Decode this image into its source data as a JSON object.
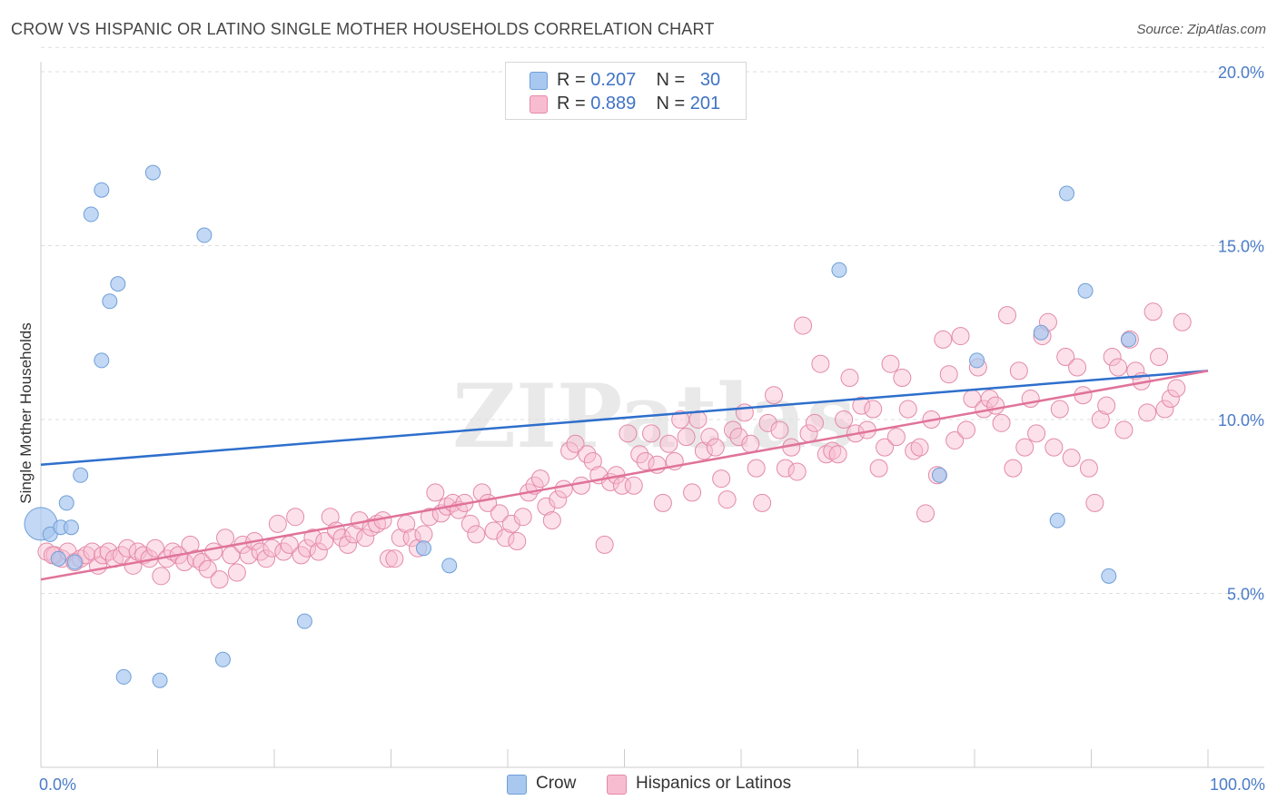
{
  "title": "CROW VS HISPANIC OR LATINO SINGLE MOTHER HOUSEHOLDS CORRELATION CHART",
  "source": "Source: ZipAtlas.com",
  "watermark": "ZIPatlas",
  "stats": [
    {
      "r_label": "R = ",
      "r_value": "0.207",
      "n_label": "N = ",
      "n_value": "30",
      "color": "#a8c8f0",
      "border": "#6f9fd8"
    },
    {
      "r_label": "R = ",
      "r_value": "0.889",
      "n_label": "N = ",
      "n_value": "201",
      "color": "#f8bcd0",
      "border": "#e38aa8"
    }
  ],
  "legend": [
    {
      "label": "Crow",
      "color": "#a8c8f0",
      "border": "#6f9fd8"
    },
    {
      "label": "Hispanics or Latinos",
      "color": "#f8bcd0",
      "border": "#e38aa8"
    }
  ],
  "chart_data": {
    "type": "scatter",
    "title": "CROW VS HISPANIC OR LATINO SINGLE MOTHER HOUSEHOLDS CORRELATION CHART",
    "xlabel": "",
    "ylabel": "Single Mother Households",
    "xlim": [
      0,
      100
    ],
    "ylim": [
      0,
      21
    ],
    "x_tick_labels": [
      "0.0%",
      "100.0%"
    ],
    "y_ticks": [
      5,
      10,
      15,
      20
    ],
    "y_tick_labels": [
      "5.0%",
      "10.0%",
      "15.0%",
      "20.0%"
    ],
    "grid": true,
    "legend_position": "bottom-center",
    "series": [
      {
        "name": "Crow",
        "color": "#a8c8f0",
        "stroke": "#6f9fd8",
        "trend": {
          "x": [
            0,
            100
          ],
          "y": [
            8.7,
            11.4
          ],
          "color": "#2e6fcc"
        },
        "points": [
          {
            "x": 0.0,
            "y": 7.0,
            "big": true
          },
          {
            "x": 0.8,
            "y": 6.7
          },
          {
            "x": 1.5,
            "y": 6.0
          },
          {
            "x": 1.7,
            "y": 6.9
          },
          {
            "x": 2.2,
            "y": 7.6
          },
          {
            "x": 2.6,
            "y": 6.9
          },
          {
            "x": 2.9,
            "y": 5.9
          },
          {
            "x": 3.4,
            "y": 8.4
          },
          {
            "x": 4.3,
            "y": 15.9
          },
          {
            "x": 5.2,
            "y": 16.6
          },
          {
            "x": 5.2,
            "y": 11.7
          },
          {
            "x": 5.9,
            "y": 13.4
          },
          {
            "x": 6.6,
            "y": 13.9
          },
          {
            "x": 7.1,
            "y": 2.6
          },
          {
            "x": 9.6,
            "y": 17.1
          },
          {
            "x": 10.2,
            "y": 2.5
          },
          {
            "x": 14.0,
            "y": 15.3
          },
          {
            "x": 15.6,
            "y": 3.1
          },
          {
            "x": 22.6,
            "y": 4.2
          },
          {
            "x": 32.8,
            "y": 6.3
          },
          {
            "x": 35.0,
            "y": 5.8
          },
          {
            "x": 68.4,
            "y": 14.3
          },
          {
            "x": 77.0,
            "y": 8.4
          },
          {
            "x": 80.2,
            "y": 11.7
          },
          {
            "x": 85.7,
            "y": 12.5
          },
          {
            "x": 87.1,
            "y": 7.1
          },
          {
            "x": 87.9,
            "y": 16.5
          },
          {
            "x": 89.5,
            "y": 13.7
          },
          {
            "x": 91.5,
            "y": 5.5
          },
          {
            "x": 93.2,
            "y": 12.3
          }
        ]
      },
      {
        "name": "Hispanics or Latinos",
        "color": "#f8bcd0",
        "stroke": "#e38aa8",
        "trend": {
          "x": [
            0,
            100
          ],
          "y": [
            5.4,
            11.4
          ],
          "color": "#e0739a"
        },
        "points": [
          {
            "x": 0.5,
            "y": 6.2
          },
          {
            "x": 1.2,
            "y": 6.1
          },
          {
            "x": 1.8,
            "y": 6.0
          },
          {
            "x": 2.3,
            "y": 6.2
          },
          {
            "x": 2.9,
            "y": 5.9
          },
          {
            "x": 3.4,
            "y": 6.0
          },
          {
            "x": 3.9,
            "y": 6.1
          },
          {
            "x": 4.4,
            "y": 6.2
          },
          {
            "x": 4.9,
            "y": 5.8
          },
          {
            "x": 5.3,
            "y": 6.1
          },
          {
            "x": 5.8,
            "y": 6.2
          },
          {
            "x": 6.3,
            "y": 6.0
          },
          {
            "x": 6.9,
            "y": 6.1
          },
          {
            "x": 7.4,
            "y": 6.3
          },
          {
            "x": 7.9,
            "y": 5.8
          },
          {
            "x": 8.3,
            "y": 6.2
          },
          {
            "x": 8.8,
            "y": 6.1
          },
          {
            "x": 9.3,
            "y": 6.0
          },
          {
            "x": 9.8,
            "y": 6.3
          },
          {
            "x": 10.3,
            "y": 5.5
          },
          {
            "x": 10.8,
            "y": 6.0
          },
          {
            "x": 11.3,
            "y": 6.2
          },
          {
            "x": 11.8,
            "y": 6.1
          },
          {
            "x": 12.3,
            "y": 5.9
          },
          {
            "x": 12.8,
            "y": 6.4
          },
          {
            "x": 13.3,
            "y": 6.0
          },
          {
            "x": 13.8,
            "y": 5.9
          },
          {
            "x": 14.3,
            "y": 5.7
          },
          {
            "x": 14.8,
            "y": 6.2
          },
          {
            "x": 15.3,
            "y": 5.4
          },
          {
            "x": 15.8,
            "y": 6.6
          },
          {
            "x": 16.3,
            "y": 6.1
          },
          {
            "x": 16.8,
            "y": 5.6
          },
          {
            "x": 17.3,
            "y": 6.4
          },
          {
            "x": 17.8,
            "y": 6.1
          },
          {
            "x": 18.3,
            "y": 6.5
          },
          {
            "x": 18.8,
            "y": 6.2
          },
          {
            "x": 19.3,
            "y": 6.0
          },
          {
            "x": 19.8,
            "y": 6.3
          },
          {
            "x": 20.3,
            "y": 7.0
          },
          {
            "x": 20.8,
            "y": 6.2
          },
          {
            "x": 21.3,
            "y": 6.4
          },
          {
            "x": 21.8,
            "y": 7.2
          },
          {
            "x": 22.3,
            "y": 6.1
          },
          {
            "x": 22.8,
            "y": 6.3
          },
          {
            "x": 23.3,
            "y": 6.6
          },
          {
            "x": 23.8,
            "y": 6.2
          },
          {
            "x": 24.3,
            "y": 6.5
          },
          {
            "x": 24.8,
            "y": 7.2
          },
          {
            "x": 25.3,
            "y": 6.8
          },
          {
            "x": 25.8,
            "y": 6.6
          },
          {
            "x": 26.3,
            "y": 6.4
          },
          {
            "x": 26.8,
            "y": 6.7
          },
          {
            "x": 27.3,
            "y": 7.1
          },
          {
            "x": 27.8,
            "y": 6.6
          },
          {
            "x": 28.3,
            "y": 6.9
          },
          {
            "x": 28.8,
            "y": 7.0
          },
          {
            "x": 29.3,
            "y": 7.1
          },
          {
            "x": 29.8,
            "y": 6.0
          },
          {
            "x": 30.3,
            "y": 6.0
          },
          {
            "x": 30.8,
            "y": 6.6
          },
          {
            "x": 31.3,
            "y": 7.0
          },
          {
            "x": 31.8,
            "y": 6.6
          },
          {
            "x": 32.3,
            "y": 6.3
          },
          {
            "x": 32.8,
            "y": 6.7
          },
          {
            "x": 33.3,
            "y": 7.2
          },
          {
            "x": 33.8,
            "y": 7.9
          },
          {
            "x": 34.3,
            "y": 7.3
          },
          {
            "x": 34.8,
            "y": 7.5
          },
          {
            "x": 35.3,
            "y": 7.6
          },
          {
            "x": 35.8,
            "y": 7.4
          },
          {
            "x": 36.3,
            "y": 7.6
          },
          {
            "x": 36.8,
            "y": 7.0
          },
          {
            "x": 37.3,
            "y": 6.7
          },
          {
            "x": 37.8,
            "y": 7.9
          },
          {
            "x": 38.3,
            "y": 7.6
          },
          {
            "x": 38.8,
            "y": 6.8
          },
          {
            "x": 39.3,
            "y": 7.3
          },
          {
            "x": 39.8,
            "y": 6.6
          },
          {
            "x": 40.3,
            "y": 7.0
          },
          {
            "x": 40.8,
            "y": 6.5
          },
          {
            "x": 41.3,
            "y": 7.2
          },
          {
            "x": 41.8,
            "y": 7.9
          },
          {
            "x": 42.3,
            "y": 8.1
          },
          {
            "x": 42.8,
            "y": 8.3
          },
          {
            "x": 43.3,
            "y": 7.5
          },
          {
            "x": 43.8,
            "y": 7.1
          },
          {
            "x": 44.3,
            "y": 7.7
          },
          {
            "x": 44.8,
            "y": 8.0
          },
          {
            "x": 45.3,
            "y": 9.1
          },
          {
            "x": 45.8,
            "y": 9.3
          },
          {
            "x": 46.3,
            "y": 8.1
          },
          {
            "x": 46.8,
            "y": 9.0
          },
          {
            "x": 47.3,
            "y": 8.8
          },
          {
            "x": 47.8,
            "y": 8.4
          },
          {
            "x": 48.3,
            "y": 6.4
          },
          {
            "x": 48.8,
            "y": 8.2
          },
          {
            "x": 49.3,
            "y": 8.4
          },
          {
            "x": 49.8,
            "y": 8.1
          },
          {
            "x": 50.3,
            "y": 9.6
          },
          {
            "x": 50.8,
            "y": 8.1
          },
          {
            "x": 51.3,
            "y": 9.0
          },
          {
            "x": 51.8,
            "y": 8.8
          },
          {
            "x": 52.3,
            "y": 9.6
          },
          {
            "x": 52.8,
            "y": 8.7
          },
          {
            "x": 53.3,
            "y": 7.6
          },
          {
            "x": 53.8,
            "y": 9.3
          },
          {
            "x": 54.3,
            "y": 8.8
          },
          {
            "x": 54.8,
            "y": 10.0
          },
          {
            "x": 55.3,
            "y": 9.5
          },
          {
            "x": 55.8,
            "y": 7.9
          },
          {
            "x": 56.3,
            "y": 10.0
          },
          {
            "x": 56.8,
            "y": 9.1
          },
          {
            "x": 57.3,
            "y": 9.5
          },
          {
            "x": 57.8,
            "y": 9.2
          },
          {
            "x": 58.3,
            "y": 8.3
          },
          {
            "x": 58.8,
            "y": 7.7
          },
          {
            "x": 59.3,
            "y": 9.7
          },
          {
            "x": 59.8,
            "y": 9.5
          },
          {
            "x": 60.3,
            "y": 10.2
          },
          {
            "x": 60.8,
            "y": 9.3
          },
          {
            "x": 61.3,
            "y": 8.6
          },
          {
            "x": 61.8,
            "y": 7.6
          },
          {
            "x": 62.3,
            "y": 9.9
          },
          {
            "x": 62.8,
            "y": 10.7
          },
          {
            "x": 63.3,
            "y": 9.7
          },
          {
            "x": 63.8,
            "y": 8.6
          },
          {
            "x": 64.3,
            "y": 9.2
          },
          {
            "x": 64.8,
            "y": 8.5
          },
          {
            "x": 65.3,
            "y": 12.7
          },
          {
            "x": 65.8,
            "y": 9.6
          },
          {
            "x": 66.3,
            "y": 9.9
          },
          {
            "x": 66.8,
            "y": 11.6
          },
          {
            "x": 67.3,
            "y": 9.0
          },
          {
            "x": 67.8,
            "y": 9.1
          },
          {
            "x": 68.3,
            "y": 9.0
          },
          {
            "x": 68.8,
            "y": 10.0
          },
          {
            "x": 69.3,
            "y": 11.2
          },
          {
            "x": 69.8,
            "y": 9.6
          },
          {
            "x": 70.3,
            "y": 10.4
          },
          {
            "x": 70.8,
            "y": 9.7
          },
          {
            "x": 71.3,
            "y": 10.3
          },
          {
            "x": 71.8,
            "y": 8.6
          },
          {
            "x": 72.3,
            "y": 9.2
          },
          {
            "x": 72.8,
            "y": 11.6
          },
          {
            "x": 73.3,
            "y": 9.5
          },
          {
            "x": 73.8,
            "y": 11.2
          },
          {
            "x": 74.3,
            "y": 10.3
          },
          {
            "x": 74.8,
            "y": 9.1
          },
          {
            "x": 75.3,
            "y": 9.2
          },
          {
            "x": 75.8,
            "y": 7.3
          },
          {
            "x": 76.3,
            "y": 10.0
          },
          {
            "x": 76.8,
            "y": 8.4
          },
          {
            "x": 77.3,
            "y": 12.3
          },
          {
            "x": 77.8,
            "y": 11.3
          },
          {
            "x": 78.3,
            "y": 9.4
          },
          {
            "x": 78.8,
            "y": 12.4
          },
          {
            "x": 79.3,
            "y": 9.7
          },
          {
            "x": 79.8,
            "y": 10.6
          },
          {
            "x": 80.3,
            "y": 11.5
          },
          {
            "x": 80.8,
            "y": 10.3
          },
          {
            "x": 81.3,
            "y": 10.6
          },
          {
            "x": 81.8,
            "y": 10.4
          },
          {
            "x": 82.3,
            "y": 9.9
          },
          {
            "x": 82.8,
            "y": 13.0
          },
          {
            "x": 83.3,
            "y": 8.6
          },
          {
            "x": 83.8,
            "y": 11.4
          },
          {
            "x": 84.3,
            "y": 9.2
          },
          {
            "x": 84.8,
            "y": 10.6
          },
          {
            "x": 85.3,
            "y": 9.6
          },
          {
            "x": 85.8,
            "y": 12.4
          },
          {
            "x": 86.3,
            "y": 12.8
          },
          {
            "x": 86.8,
            "y": 9.2
          },
          {
            "x": 87.3,
            "y": 10.3
          },
          {
            "x": 87.8,
            "y": 11.8
          },
          {
            "x": 88.3,
            "y": 8.9
          },
          {
            "x": 88.8,
            "y": 11.5
          },
          {
            "x": 89.3,
            "y": 10.7
          },
          {
            "x": 89.8,
            "y": 8.6
          },
          {
            "x": 90.3,
            "y": 7.6
          },
          {
            "x": 90.8,
            "y": 10.0
          },
          {
            "x": 91.3,
            "y": 10.4
          },
          {
            "x": 91.8,
            "y": 11.8
          },
          {
            "x": 92.3,
            "y": 11.5
          },
          {
            "x": 92.8,
            "y": 9.7
          },
          {
            "x": 93.3,
            "y": 12.3
          },
          {
            "x": 93.8,
            "y": 11.4
          },
          {
            "x": 94.3,
            "y": 11.1
          },
          {
            "x": 94.8,
            "y": 10.2
          },
          {
            "x": 95.3,
            "y": 13.1
          },
          {
            "x": 95.8,
            "y": 11.8
          },
          {
            "x": 96.3,
            "y": 10.3
          },
          {
            "x": 96.8,
            "y": 10.6
          },
          {
            "x": 97.3,
            "y": 10.9
          },
          {
            "x": 97.8,
            "y": 12.8
          },
          {
            "x": 1.0,
            "y": 6.1
          }
        ]
      }
    ]
  }
}
